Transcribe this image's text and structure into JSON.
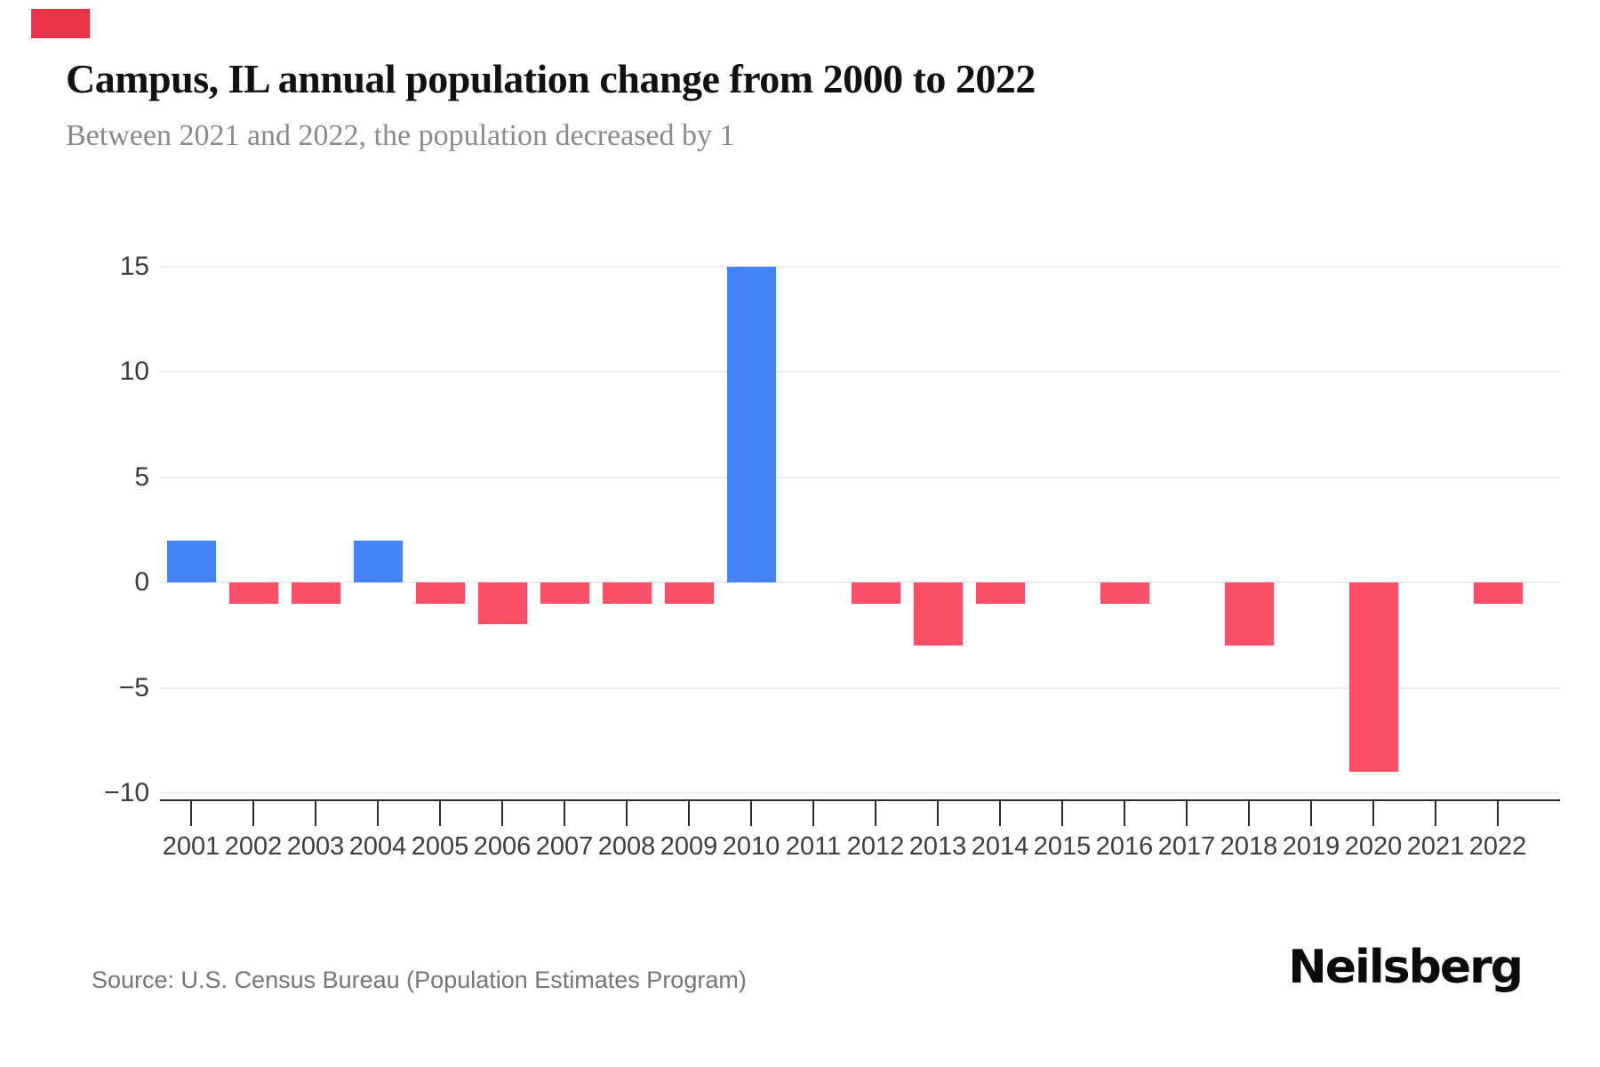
{
  "header": {
    "title": "Campus, IL annual population change from 2000 to 2022",
    "subtitle": "Between 2021 and 2022, the population decreased by 1"
  },
  "footer": {
    "source": "Source: U.S. Census Bureau (Population Estimates Program)",
    "logo": "Neilsberg"
  },
  "colors": {
    "positive_bar": "#4584f4",
    "negative_bar": "#fb4f67",
    "brand_mark": "#e93349",
    "gridline": "#ededed",
    "axis": "#2b2b2b",
    "tick_label": "#3d3d3d",
    "title": "#111111",
    "subtitle": "#8a8a8a",
    "source": "#757575"
  },
  "chart_data": {
    "type": "bar",
    "title": "Campus, IL annual population change from 2000 to 2022",
    "subtitle": "Between 2021 and 2022, the population decreased by 1",
    "categories": [
      "2001",
      "2002",
      "2003",
      "2004",
      "2005",
      "2006",
      "2007",
      "2008",
      "2009",
      "2010",
      "2011",
      "2012",
      "2013",
      "2014",
      "2015",
      "2016",
      "2017",
      "2018",
      "2019",
      "2020",
      "2021",
      "2022"
    ],
    "values": [
      2,
      -1,
      -1,
      2,
      -1,
      -2,
      -1,
      -1,
      -1,
      15,
      0,
      -1,
      -3,
      -1,
      0,
      -1,
      0,
      -3,
      0,
      -9,
      0,
      -1
    ],
    "xlabel": "",
    "ylabel": "",
    "ylim": [
      -10,
      15
    ],
    "yticks": [
      15,
      10,
      5,
      0,
      -5,
      -10
    ],
    "ytick_labels": [
      "15",
      "10",
      "5",
      "0",
      "−5",
      "−10"
    ],
    "grid": "horizontal-light",
    "legend": "none",
    "bar_color_rule": "blue for positive values, pink-red for negative values"
  }
}
